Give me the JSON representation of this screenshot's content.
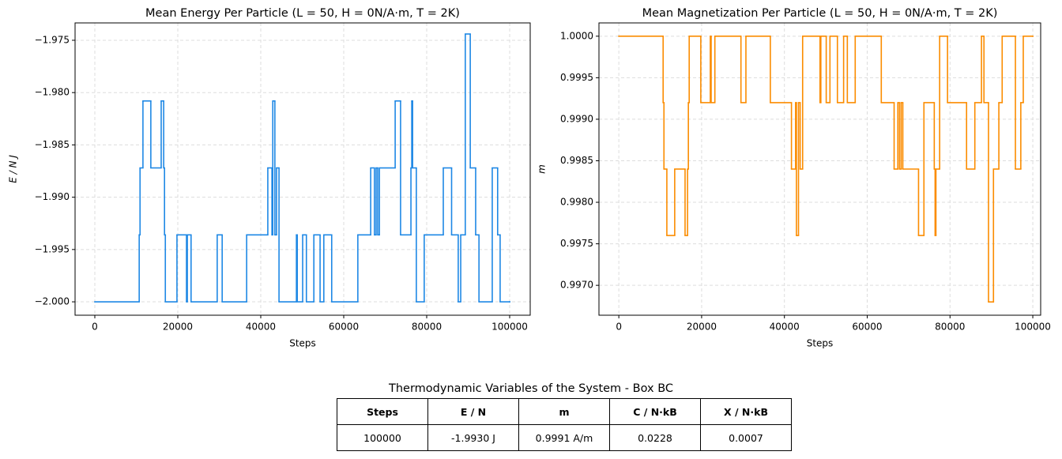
{
  "chart_data": [
    {
      "type": "line",
      "title": "Mean Energy Per Particle (L = 50, H = 0N/A·m, T = 2K)",
      "x_label": "Steps",
      "y_label": "E / N J",
      "drawstyle": "steps-post",
      "grid": true,
      "xlim": [
        -4760,
        104950
      ],
      "ylim": [
        -2.00128,
        -1.97334
      ],
      "xticks": [
        0,
        20000,
        40000,
        60000,
        80000,
        100000
      ],
      "yticks": [
        {
          "value": -2.0,
          "label": "−2.000"
        },
        {
          "value": -1.995,
          "label": "−1.995"
        },
        {
          "value": -1.99,
          "label": "−1.990"
        },
        {
          "value": -1.985,
          "label": "−1.985"
        },
        {
          "value": -1.98,
          "label": "−1.980"
        },
        {
          "value": -1.975,
          "label": "−1.975"
        }
      ],
      "x": [
        0,
        10700,
        10900,
        11600,
        13500,
        16000,
        16600,
        16800,
        17000,
        19800,
        22100,
        22300,
        23200,
        29500,
        30700,
        36600,
        41700,
        42700,
        42900,
        43400,
        43800,
        44400,
        48600,
        48800,
        50100,
        51000,
        52800,
        54300,
        55200,
        57100,
        63400,
        66500,
        67400,
        67800,
        68200,
        68600,
        72400,
        73700,
        76200,
        76400,
        76600,
        77500,
        79400,
        84000,
        86000,
        87600,
        88200,
        89300,
        90500,
        91800,
        92600,
        95800,
        97100,
        97700,
        100000
      ],
      "series": [
        {
          "color": "#1e88e5",
          "values": [
            -2.0,
            -1.9936,
            -1.9872,
            -1.9808,
            -1.9872,
            -1.9808,
            -1.9872,
            -1.9936,
            -2.0,
            -1.9936,
            -2.0,
            -1.9936,
            -2.0,
            -1.9936,
            -2.0,
            -1.9936,
            -1.9872,
            -1.9936,
            -1.9808,
            -1.9936,
            -1.9872,
            -2.0,
            -1.9936,
            -2.0,
            -1.9936,
            -2.0,
            -1.9936,
            -2.0,
            -1.9936,
            -2.0,
            -1.9936,
            -1.9872,
            -1.9936,
            -1.9872,
            -1.9936,
            -1.9872,
            -1.9808,
            -1.9936,
            -1.9872,
            -1.9808,
            -1.9872,
            -2.0,
            -1.9936,
            -1.9872,
            -1.9936,
            -2.0,
            -1.9936,
            -1.9744,
            -1.9872,
            -1.9936,
            -2.0,
            -1.9872,
            -1.9936,
            -2.0,
            -2.0
          ]
        }
      ]
    },
    {
      "type": "line",
      "title": "Mean Magnetization Per Particle (L = 50, H = 0N/A·m, T = 2K)",
      "x_label": "Steps",
      "y_label": "m",
      "drawstyle": "steps-post",
      "grid": true,
      "xlim": [
        -4800,
        101900
      ],
      "ylim": [
        0.99664,
        1.00016
      ],
      "xticks": [
        0,
        20000,
        40000,
        60000,
        80000,
        100000
      ],
      "yticks": [
        {
          "value": 0.997,
          "label": "0.9970"
        },
        0.9975,
        {
          "value": 0.998,
          "label": "0.9980"
        },
        0.9985,
        {
          "value": 0.999,
          "label": "0.9990"
        },
        0.9995,
        {
          "value": 1.0,
          "label": "1.0000"
        }
      ],
      "x": [
        0,
        10700,
        10900,
        11600,
        13500,
        16000,
        16600,
        16800,
        17000,
        19800,
        22100,
        22300,
        23200,
        29500,
        30700,
        36600,
        41700,
        42700,
        42900,
        43400,
        43800,
        44400,
        48600,
        48800,
        50100,
        51000,
        52800,
        54300,
        55200,
        57100,
        63400,
        66500,
        67400,
        67800,
        68200,
        68600,
        72400,
        73700,
        76200,
        76400,
        76600,
        77500,
        79400,
        84000,
        86000,
        87600,
        88200,
        89300,
        90500,
        91800,
        92600,
        95800,
        97100,
        97700,
        100000
      ],
      "series": [
        {
          "color": "#fb8c00",
          "values": [
            1.0,
            0.9992,
            0.9984,
            0.9976,
            0.9984,
            0.9976,
            0.9984,
            0.9992,
            1.0,
            0.9992,
            1.0,
            0.9992,
            1.0,
            0.9992,
            1.0,
            0.9992,
            0.9984,
            0.9992,
            0.9976,
            0.9992,
            0.9984,
            1.0,
            0.9992,
            1.0,
            0.9992,
            1.0,
            0.9992,
            1.0,
            0.9992,
            1.0,
            0.9992,
            0.9984,
            0.9992,
            0.9984,
            0.9992,
            0.9984,
            0.9976,
            0.9992,
            0.9984,
            0.9976,
            0.9984,
            1.0,
            0.9992,
            0.9984,
            0.9992,
            1.0,
            0.9992,
            0.9968,
            0.9984,
            0.9992,
            1.0,
            0.9984,
            0.9992,
            1.0,
            1.0
          ]
        }
      ]
    }
  ],
  "table": {
    "title": "Thermodynamic Variables of the System - Box BC",
    "columns": [
      "Steps",
      "E / N",
      "m",
      "C / N·kB",
      "X / N·kB"
    ],
    "rows": [
      [
        "100000",
        "-1.9930 J",
        "0.9991 A/m",
        "0.0228",
        "0.0007"
      ]
    ]
  }
}
